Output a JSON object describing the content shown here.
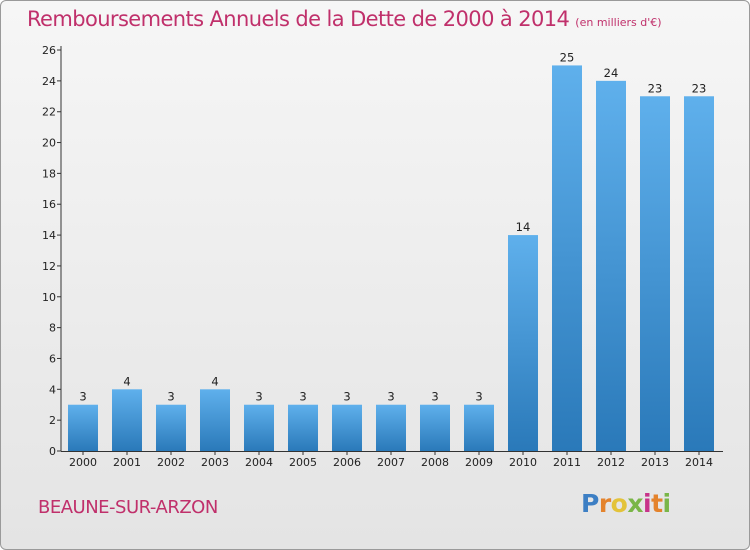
{
  "header": {
    "title": "Remboursements Annuels de la Dette de 2000 à 2014",
    "unit": "(en milliers d'€)"
  },
  "footer": {
    "commune": "BEAUNE-SUR-ARZON",
    "logo": {
      "text": "Proxiti",
      "letters": [
        "P",
        "r",
        "o",
        "x",
        "i",
        "t",
        "i"
      ]
    }
  },
  "colors": {
    "title": "#c0306b",
    "bar_top": "#5fb0ec",
    "bar_bottom": "#2a79b9"
  },
  "chart_data": {
    "type": "bar",
    "title": "Remboursements Annuels de la Dette de 2000 à 2014",
    "subtitle": "(en milliers d'€)",
    "xlabel": "",
    "ylabel": "",
    "categories": [
      "2000",
      "2001",
      "2002",
      "2003",
      "2004",
      "2005",
      "2006",
      "2007",
      "2008",
      "2009",
      "2010",
      "2011",
      "2012",
      "2013",
      "2014"
    ],
    "values": [
      3,
      4,
      3,
      4,
      3,
      3,
      3,
      3,
      3,
      3,
      14,
      25,
      24,
      23,
      23
    ],
    "data_labels": [
      "3",
      "4",
      "3",
      "4",
      "3",
      "3",
      "3",
      "3",
      "3",
      "3",
      "14",
      "25",
      "24",
      "23",
      "23"
    ],
    "ylim": [
      0,
      26
    ],
    "yticks": [
      0,
      2,
      4,
      6,
      8,
      10,
      12,
      14,
      16,
      18,
      20,
      22,
      24,
      26
    ],
    "grid": false,
    "legend": "none"
  }
}
